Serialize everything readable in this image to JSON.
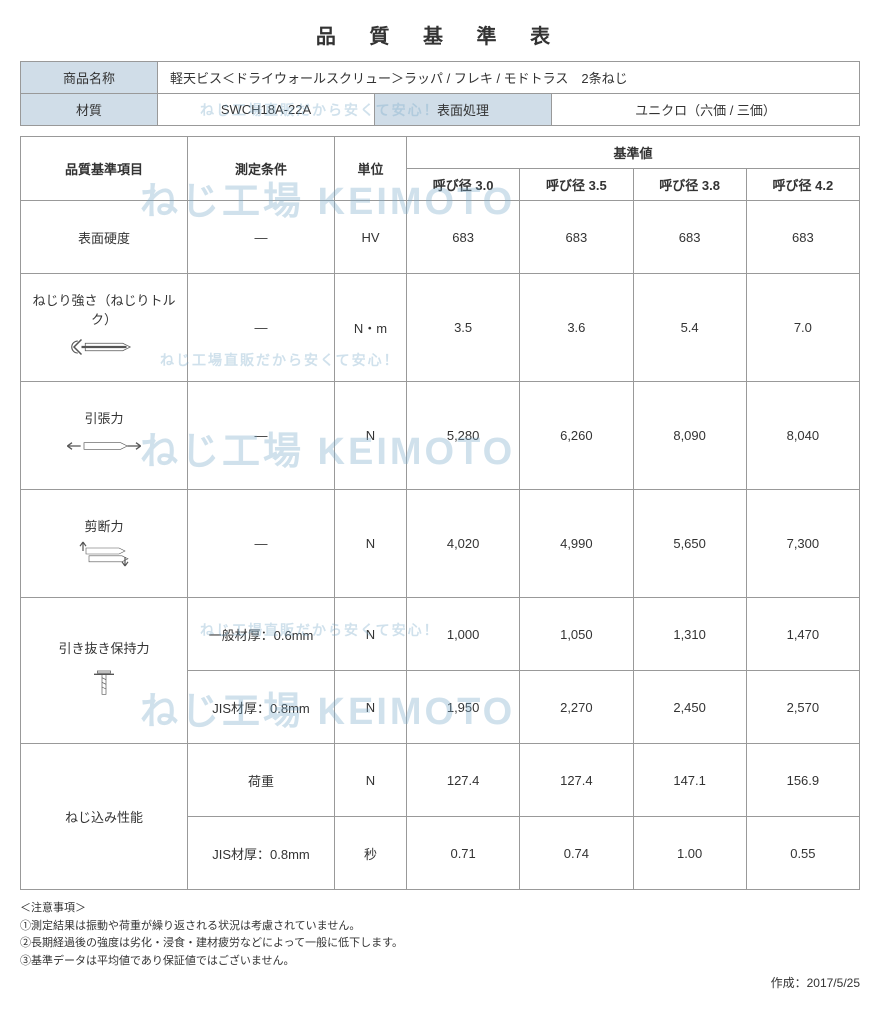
{
  "title": "品 質 基 準 表",
  "header1": {
    "label_name": "商品名称",
    "value_name": "軽天ビス＜ドライウォールスクリュー＞ラッパ / フレキ / モドトラス　2条ねじ",
    "label_material": "材質",
    "value_material": "SWCH18A-22A",
    "label_surface": "表面処理",
    "value_surface": "ユニクロ（六価 / 三価）"
  },
  "table2": {
    "col_item": "品質基準項目",
    "col_cond": "測定条件",
    "col_unit": "単位",
    "col_standard": "基準値",
    "diam_labels": [
      "呼び径 3.0",
      "呼び径 3.5",
      "呼び径 3.8",
      "呼び径 4.2"
    ],
    "rows": [
      {
        "item": "表面硬度",
        "cond": "―",
        "unit": "HV",
        "vals": [
          "683",
          "683",
          "683",
          "683"
        ],
        "h": "med"
      },
      {
        "item": "ねじり強さ（ねじりトルク）",
        "cond": "―",
        "unit": "N・m",
        "vals": [
          "3.5",
          "3.6",
          "5.4",
          "7.0"
        ],
        "h": "tall",
        "icon": "torque"
      },
      {
        "item": "引張力",
        "cond": "―",
        "unit": "N",
        "vals": [
          "5,280",
          "6,260",
          "8,090",
          "8,040"
        ],
        "h": "tall",
        "icon": "tension"
      },
      {
        "item": "剪断力",
        "cond": "―",
        "unit": "N",
        "vals": [
          "4,020",
          "4,990",
          "5,650",
          "7,300"
        ],
        "h": "tall",
        "icon": "shear"
      },
      {
        "item": "引き抜き保持力",
        "cond": "一般材厚：0.6mm",
        "unit": "N",
        "vals": [
          "1,000",
          "1,050",
          "1,310",
          "1,470"
        ],
        "h": "med",
        "icon": "pull",
        "rowspan": 2
      },
      {
        "item": "",
        "cond": "JIS材厚：0.8mm",
        "unit": "N",
        "vals": [
          "1,950",
          "2,270",
          "2,450",
          "2,570"
        ],
        "h": "med"
      },
      {
        "item": "ねじ込み性能",
        "cond": "荷重",
        "unit": "N",
        "vals": [
          "127.4",
          "127.4",
          "147.1",
          "156.9"
        ],
        "h": "med",
        "rowspan": 2
      },
      {
        "item": "",
        "cond": "JIS材厚：0.8mm",
        "unit": "秒",
        "vals": [
          "0.71",
          "0.74",
          "1.00",
          "0.55"
        ],
        "h": "med"
      }
    ]
  },
  "notes": {
    "header": "＜注意事項＞",
    "lines": [
      "①測定結果は振動や荷重が繰り返される状況は考慮されていません。",
      "②長期経過後の強度は劣化・浸食・建材疲労などによって一般に低下します。",
      "③基準データは平均値であり保証値ではございません。"
    ]
  },
  "date_label": "作成：",
  "date_value": "2017/5/25",
  "watermarks": {
    "small_text": "ねじ工場直販だから安くて安心！",
    "big_text": "ねじ工場 KEIMOTO"
  },
  "colors": {
    "header_bg": "#d0dde8",
    "border": "#999999",
    "text": "#333333",
    "wm": "rgba(120,170,200,0.35)"
  }
}
